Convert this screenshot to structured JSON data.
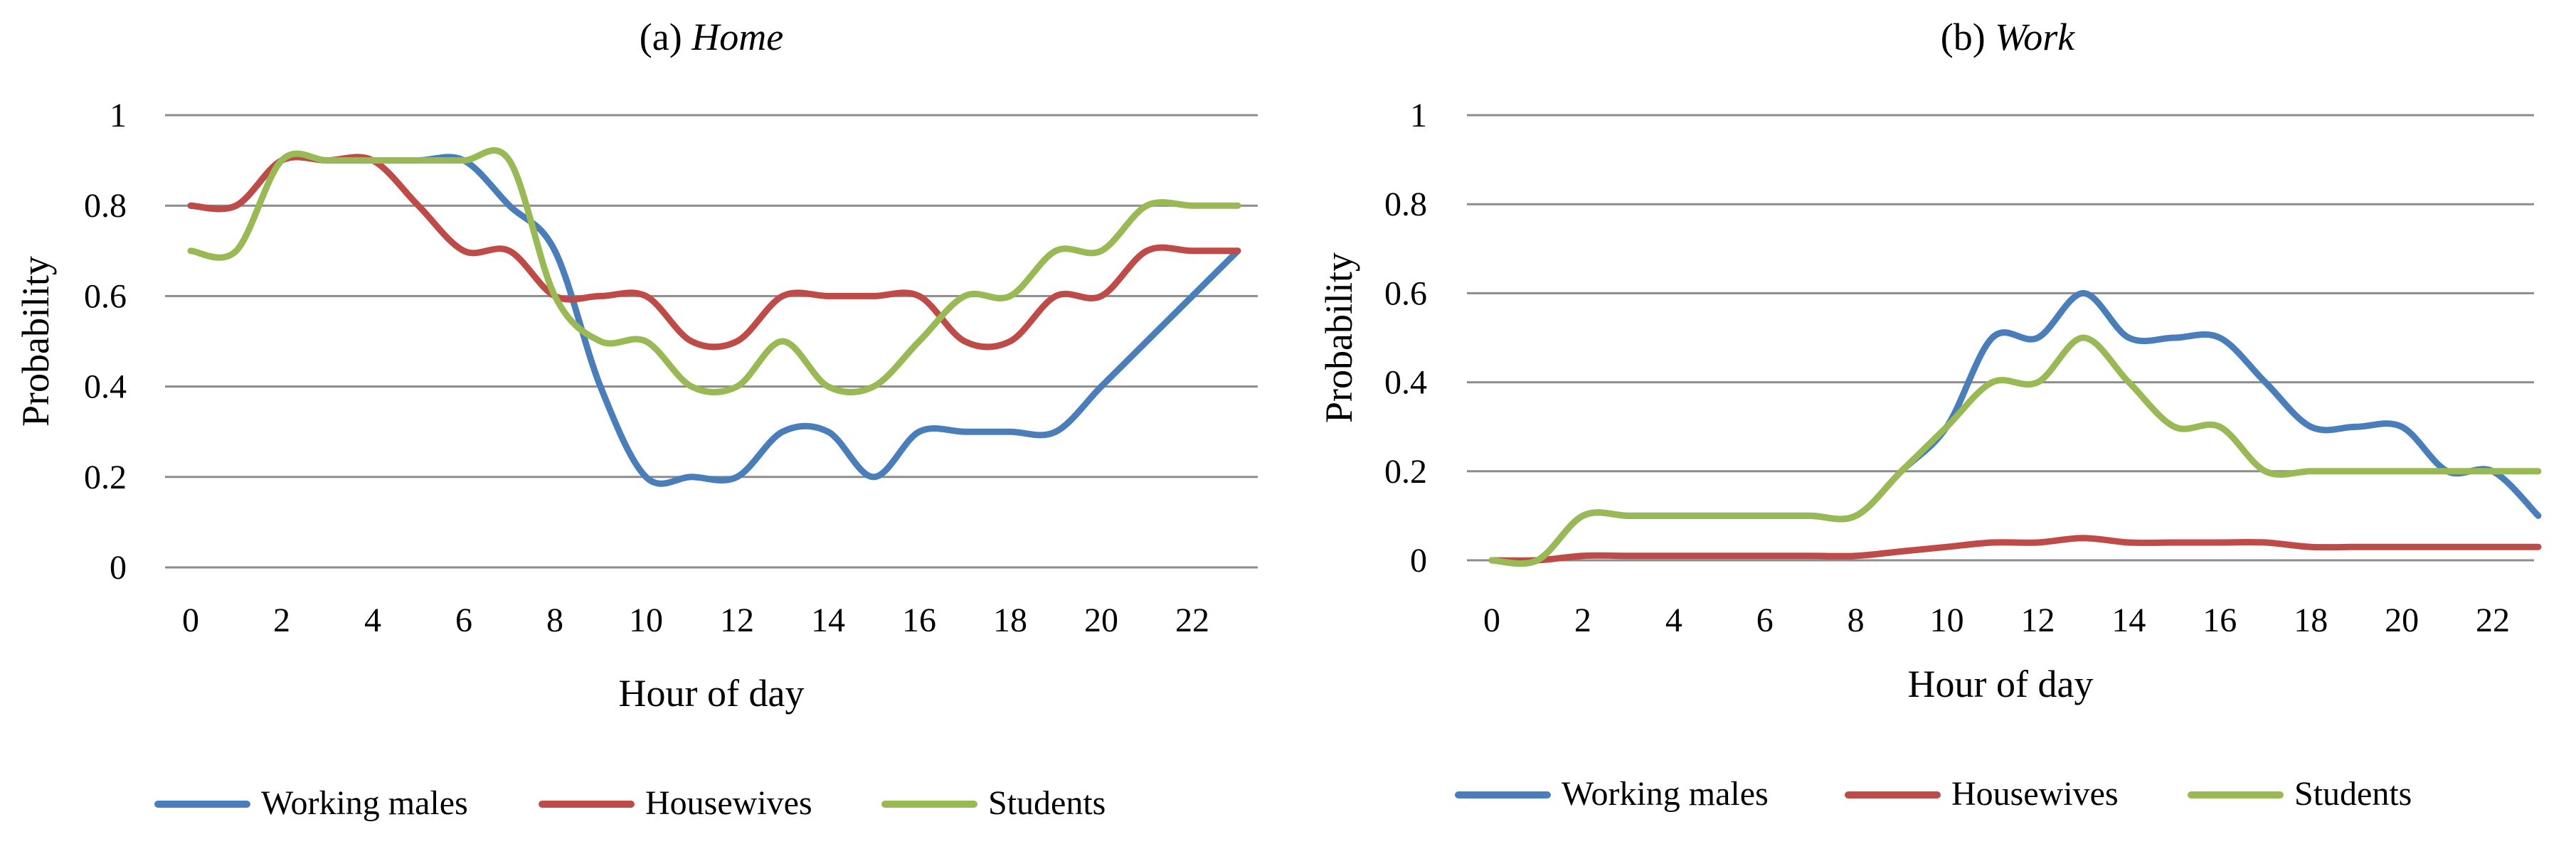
{
  "chart_data": [
    {
      "type": "line",
      "title_prefix": "(a) ",
      "title_main": "Home",
      "xlabel": "Hour of day",
      "ylabel": "Probability",
      "ylim": [
        0,
        1
      ],
      "xlim": [
        0,
        23
      ],
      "y_ticks": [
        "0",
        "0.2",
        "0.4",
        "0.6",
        "0.8",
        "1"
      ],
      "x_ticks": [
        "0",
        "2",
        "4",
        "6",
        "8",
        "10",
        "12",
        "14",
        "16",
        "18",
        "20",
        "22"
      ],
      "grid": true,
      "legend_position": "bottom",
      "x": [
        0,
        1,
        2,
        3,
        4,
        5,
        6,
        7,
        8,
        9,
        10,
        11,
        12,
        13,
        14,
        15,
        16,
        17,
        18,
        19,
        20,
        21,
        22,
        23
      ],
      "series": [
        {
          "name": "Working males",
          "color": "#4a7ebb",
          "values": [
            0.8,
            0.8,
            0.9,
            0.9,
            0.9,
            0.9,
            0.9,
            0.8,
            0.7,
            0.4,
            0.2,
            0.2,
            0.2,
            0.3,
            0.3,
            0.2,
            0.3,
            0.3,
            0.3,
            0.3,
            0.4,
            0.5,
            0.6,
            0.7
          ]
        },
        {
          "name": "Housewives",
          "color": "#be4b48",
          "values": [
            0.8,
            0.8,
            0.9,
            0.9,
            0.9,
            0.8,
            0.7,
            0.7,
            0.6,
            0.6,
            0.6,
            0.5,
            0.5,
            0.6,
            0.6,
            0.6,
            0.6,
            0.5,
            0.5,
            0.6,
            0.6,
            0.7,
            0.7,
            0.7
          ]
        },
        {
          "name": "Students",
          "color": "#98b954",
          "values": [
            0.7,
            0.7,
            0.9,
            0.9,
            0.9,
            0.9,
            0.9,
            0.9,
            0.6,
            0.5,
            0.5,
            0.4,
            0.4,
            0.5,
            0.4,
            0.4,
            0.5,
            0.6,
            0.6,
            0.7,
            0.7,
            0.8,
            0.8,
            0.8
          ]
        }
      ]
    },
    {
      "type": "line",
      "title_prefix": "(b) ",
      "title_main": "Work",
      "xlabel": "Hour of day",
      "ylabel": "Probability",
      "ylim": [
        0,
        1
      ],
      "xlim": [
        0,
        23
      ],
      "y_ticks": [
        "0",
        "0.2",
        "0.4",
        "0.6",
        "0.8",
        "1"
      ],
      "x_ticks": [
        "0",
        "2",
        "4",
        "6",
        "8",
        "10",
        "12",
        "14",
        "16",
        "18",
        "20",
        "22"
      ],
      "grid": true,
      "legend_position": "bottom",
      "x": [
        0,
        1,
        2,
        3,
        4,
        5,
        6,
        7,
        8,
        9,
        10,
        11,
        12,
        13,
        14,
        15,
        16,
        17,
        18,
        19,
        20,
        21,
        22,
        23
      ],
      "series": [
        {
          "name": "Working males",
          "color": "#4a7ebb",
          "values": [
            0,
            0,
            0.1,
            0.1,
            0.1,
            0.1,
            0.1,
            0.1,
            0.1,
            0.2,
            0.3,
            0.5,
            0.5,
            0.6,
            0.5,
            0.5,
            0.5,
            0.4,
            0.3,
            0.3,
            0.3,
            0.2,
            0.2,
            0.1
          ]
        },
        {
          "name": "Housewives",
          "color": "#be4b48",
          "values": [
            0,
            0,
            0.01,
            0.01,
            0.01,
            0.01,
            0.01,
            0.01,
            0.01,
            0.02,
            0.03,
            0.04,
            0.04,
            0.05,
            0.04,
            0.04,
            0.04,
            0.04,
            0.03,
            0.03,
            0.03,
            0.03,
            0.03,
            0.03
          ]
        },
        {
          "name": "Students",
          "color": "#98b954",
          "values": [
            0,
            0,
            0.1,
            0.1,
            0.1,
            0.1,
            0.1,
            0.1,
            0.1,
            0.2,
            0.3,
            0.4,
            0.4,
            0.5,
            0.4,
            0.3,
            0.3,
            0.2,
            0.2,
            0.2,
            0.2,
            0.2,
            0.2,
            0.2
          ]
        }
      ]
    }
  ]
}
